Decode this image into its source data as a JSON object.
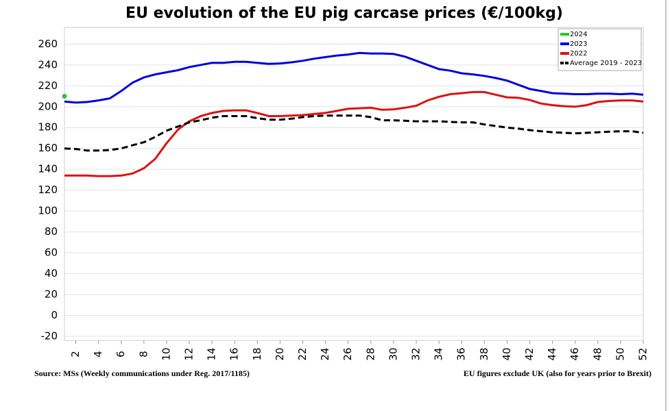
{
  "chart_data": {
    "type": "line",
    "title": "EU evolution of the EU pig carcase prices (€/100kg)",
    "source": "Source: MSs (Weekly communications under Reg. 2017/1185)",
    "note": "EU figures exclude UK (also for years prior to Brexit)",
    "x": [
      1,
      2,
      3,
      4,
      5,
      6,
      7,
      8,
      9,
      10,
      11,
      12,
      13,
      14,
      15,
      16,
      17,
      18,
      19,
      20,
      21,
      22,
      23,
      24,
      25,
      26,
      27,
      28,
      29,
      30,
      31,
      32,
      33,
      34,
      35,
      36,
      37,
      38,
      39,
      40,
      41,
      42,
      43,
      44,
      45,
      46,
      47,
      48,
      49,
      50,
      51,
      52
    ],
    "xlim": [
      1,
      52
    ],
    "xticks": [
      2,
      4,
      6,
      8,
      10,
      12,
      14,
      16,
      18,
      20,
      22,
      24,
      26,
      28,
      30,
      32,
      34,
      36,
      38,
      40,
      42,
      44,
      46,
      48,
      50,
      52
    ],
    "ylim": [
      -24,
      276
    ],
    "yticks": [
      -20,
      0,
      20,
      40,
      60,
      80,
      100,
      120,
      140,
      160,
      180,
      200,
      220,
      240,
      260
    ],
    "grid": true,
    "legend": "top-right",
    "series": [
      {
        "name": "2024",
        "color": "#22cc22",
        "style": "solid",
        "values": [
          210,
          null,
          null,
          null,
          null,
          null,
          null,
          null,
          null,
          null,
          null,
          null,
          null,
          null,
          null,
          null,
          null,
          null,
          null,
          null,
          null,
          null,
          null,
          null,
          null,
          null,
          null,
          null,
          null,
          null,
          null,
          null,
          null,
          null,
          null,
          null,
          null,
          null,
          null,
          null,
          null,
          null,
          null,
          null,
          null,
          null,
          null,
          null,
          null,
          null,
          null,
          null
        ]
      },
      {
        "name": "2023",
        "color": "#0000dd",
        "style": "solid",
        "values": [
          205,
          204,
          204.5,
          206,
          208,
          215,
          223,
          228,
          231,
          233,
          235,
          238,
          240,
          242,
          242,
          243,
          243,
          242,
          241,
          241.5,
          242.5,
          244,
          246,
          247.5,
          249,
          250,
          251.5,
          251,
          251,
          250.5,
          248,
          244,
          240,
          236,
          234.5,
          232,
          231,
          229.5,
          227.5,
          225,
          221,
          217,
          215,
          213,
          212.5,
          212,
          212,
          212.5,
          212.5,
          212,
          212.5,
          211.5
        ]
      },
      {
        "name": "2022",
        "color": "#dd1111",
        "style": "solid",
        "values": [
          134,
          134,
          134,
          133.5,
          133.5,
          134,
          136,
          141,
          150,
          165,
          178,
          186,
          191,
          194,
          196,
          196.5,
          196.5,
          194,
          191,
          191,
          191.5,
          192,
          193,
          194,
          196,
          198,
          198.5,
          199,
          197,
          197.5,
          199,
          201,
          206,
          209.5,
          212,
          213,
          214,
          214,
          211.5,
          209,
          208.5,
          206.5,
          203,
          201.5,
          200.5,
          200,
          201.5,
          204.5,
          205.5,
          206,
          206,
          205
        ]
      },
      {
        "name": "Average 2019 - 2023",
        "color": "#000000",
        "style": "dashed",
        "values": [
          160,
          159.5,
          158,
          158,
          158.5,
          160,
          163,
          166,
          171,
          177,
          181,
          185,
          187,
          189.5,
          191,
          191,
          191,
          189,
          187.5,
          187.5,
          188.5,
          190,
          191,
          191.5,
          191.5,
          191.5,
          191.5,
          190,
          187,
          187,
          186.5,
          186,
          186,
          186,
          185.5,
          185,
          185,
          183,
          181.5,
          180,
          179,
          177.5,
          176.5,
          175.5,
          175,
          174.5,
          175,
          175.5,
          176,
          176.5,
          176.5,
          175
        ]
      }
    ]
  }
}
